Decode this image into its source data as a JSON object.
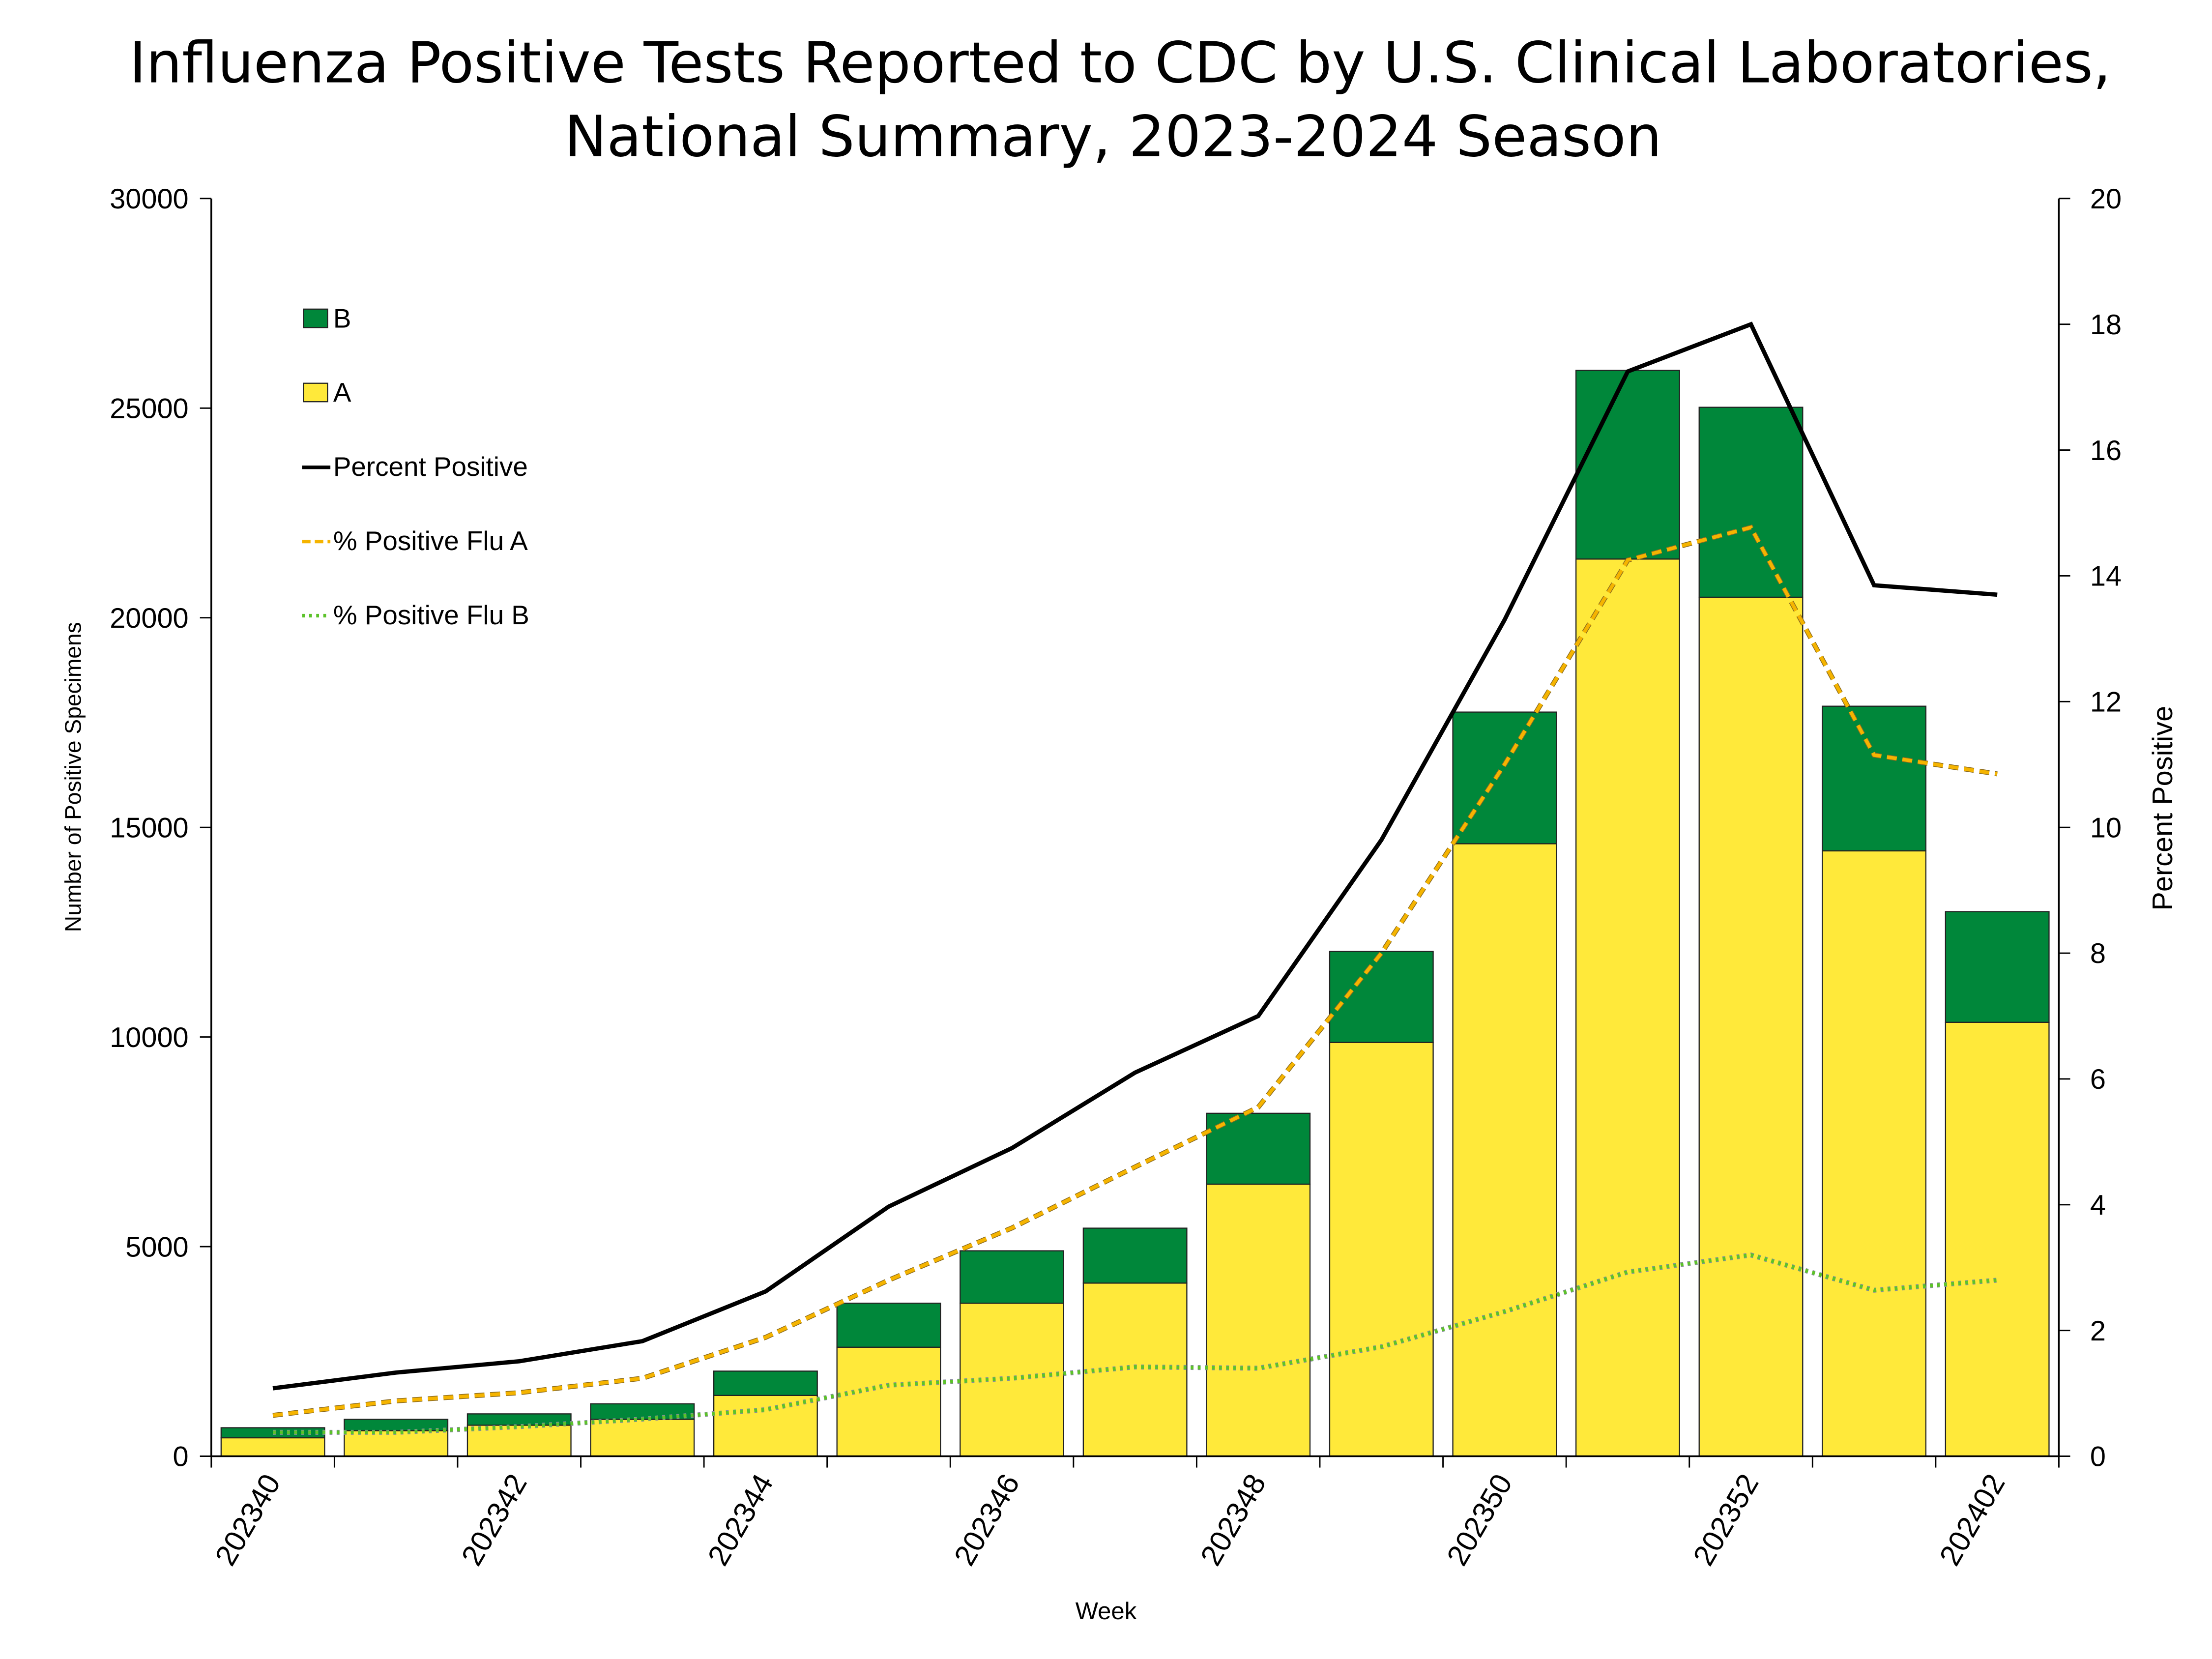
{
  "chart_data": {
    "type": "bar",
    "title_lines": [
      "Influenza Positive Tests Reported to CDC by U.S. Clinical Laboratories,",
      "National Summary, 2023-2024 Season"
    ],
    "xlabel": "Week",
    "ylabel": "Number of Positive Specimens",
    "y2label": "Percent Positive",
    "ylim": [
      0,
      30000
    ],
    "y2lim": [
      0,
      20
    ],
    "yticks": [
      "0",
      "5000",
      "10000",
      "15000",
      "20000",
      "25000",
      "30000"
    ],
    "y2ticks": [
      "0",
      "2",
      "4",
      "6",
      "8",
      "10",
      "12",
      "14",
      "16",
      "18",
      "20"
    ],
    "categories": [
      "202340",
      "202341",
      "202342",
      "202343",
      "202344",
      "202345",
      "202346",
      "202347",
      "202348",
      "202349",
      "202350",
      "202351",
      "202352",
      "202401",
      "202402"
    ],
    "xtick_labels": [
      "202340",
      "",
      "202342",
      "",
      "202344",
      "",
      "202346",
      "",
      "202348",
      "",
      "202350",
      "",
      "202352",
      "",
      "202402"
    ],
    "legend_placement": "top-left",
    "grid": false,
    "stacked_series": [
      {
        "name": "A",
        "color": "#ffe93a",
        "values": [
          440,
          610,
          740,
          880,
          1450,
          2600,
          3650,
          4130,
          6490,
          9870,
          14610,
          21400,
          20490,
          14440,
          10350
        ]
      },
      {
        "name": "B",
        "color": "#00873a",
        "values": [
          240,
          270,
          270,
          370,
          580,
          1050,
          1250,
          1310,
          1690,
          2170,
          3140,
          4500,
          4530,
          3450,
          2640
        ]
      }
    ],
    "line_series": [
      {
        "name": "Percent Positive",
        "color": "#000000",
        "style": "solid",
        "axis": "right",
        "values": [
          1.08,
          1.33,
          1.51,
          1.83,
          2.62,
          3.97,
          4.9,
          6.1,
          7.0,
          9.8,
          13.3,
          17.25,
          18.0,
          13.85,
          13.7
        ]
      },
      {
        "name": "% Positive Flu A",
        "color": "#f5b400",
        "style": "dashed",
        "axis": "right",
        "values": [
          0.65,
          0.88,
          1.01,
          1.24,
          1.89,
          2.8,
          3.63,
          4.6,
          5.55,
          8.0,
          11.0,
          14.25,
          14.77,
          11.15,
          10.85
        ]
      },
      {
        "name": "% Positive Flu B",
        "color": "#5cc22a",
        "style": "dotted",
        "axis": "right",
        "values": [
          0.38,
          0.38,
          0.47,
          0.59,
          0.74,
          1.13,
          1.24,
          1.42,
          1.4,
          1.74,
          2.3,
          2.93,
          3.2,
          2.64,
          2.8
        ]
      }
    ],
    "legend": [
      "B",
      "A",
      "Percent Positive",
      "% Positive Flu A",
      "% Positive Flu B"
    ]
  }
}
